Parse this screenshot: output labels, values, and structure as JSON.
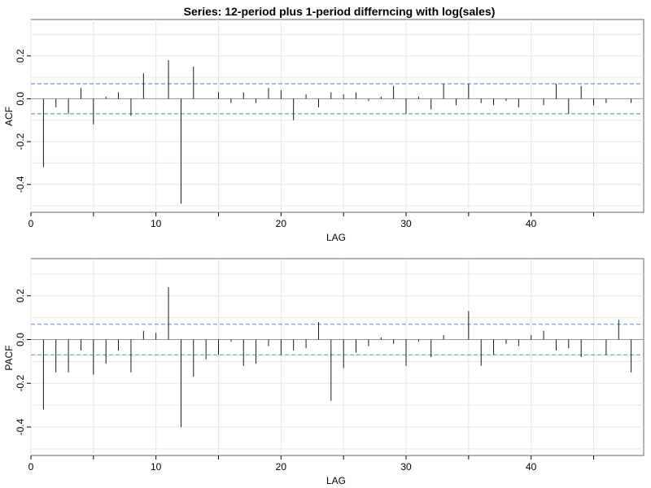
{
  "title": "Series: 12-period plus 1-period differncing with log(sales)",
  "chart_data": [
    {
      "type": "bar",
      "ylabel": "ACF",
      "xlabel": "LAG",
      "xlim": [
        0,
        49
      ],
      "ylim": [
        -0.53,
        0.37
      ],
      "x_ticks": [
        0,
        10,
        20,
        30,
        40
      ],
      "y_ticks": [
        -0.4,
        -0.2,
        0.0,
        0.2
      ],
      "y_tick_labels": [
        "-0.4",
        "-0.2",
        "0.0",
        "0.2"
      ],
      "confidence_bound": 0.07,
      "lags": [
        1,
        2,
        3,
        4,
        5,
        6,
        7,
        8,
        9,
        10,
        11,
        12,
        13,
        14,
        15,
        16,
        17,
        18,
        19,
        20,
        21,
        22,
        23,
        24,
        25,
        26,
        27,
        28,
        29,
        30,
        31,
        32,
        33,
        34,
        35,
        36,
        37,
        38,
        39,
        40,
        41,
        42,
        43,
        44,
        45,
        46,
        47,
        48
      ],
      "values": [
        -0.32,
        -0.04,
        -0.07,
        0.05,
        -0.12,
        0.01,
        0.03,
        -0.08,
        0.12,
        0.0,
        0.18,
        -0.49,
        0.15,
        0.0,
        0.03,
        -0.02,
        0.03,
        -0.02,
        0.05,
        0.04,
        -0.1,
        0.02,
        -0.04,
        0.03,
        0.02,
        0.03,
        -0.01,
        0.01,
        0.06,
        -0.07,
        0.01,
        -0.05,
        0.07,
        -0.03,
        0.07,
        -0.02,
        -0.03,
        -0.01,
        -0.04,
        0.0,
        -0.03,
        0.07,
        -0.07,
        0.06,
        -0.03,
        -0.02,
        0.0,
        -0.02
      ]
    },
    {
      "type": "bar",
      "ylabel": "PACF",
      "xlabel": "LAG",
      "xlim": [
        0,
        49
      ],
      "ylim": [
        -0.53,
        0.37
      ],
      "x_ticks": [
        0,
        10,
        20,
        30,
        40
      ],
      "y_ticks": [
        -0.4,
        -0.2,
        0.0,
        0.2
      ],
      "y_tick_labels": [
        "-0.4",
        "-0.2",
        "0.0",
        "0.2"
      ],
      "confidence_bound": 0.07,
      "lags": [
        1,
        2,
        3,
        4,
        5,
        6,
        7,
        8,
        9,
        10,
        11,
        12,
        13,
        14,
        15,
        16,
        17,
        18,
        19,
        20,
        21,
        22,
        23,
        24,
        25,
        26,
        27,
        28,
        29,
        30,
        31,
        32,
        33,
        34,
        35,
        36,
        37,
        38,
        39,
        40,
        41,
        42,
        43,
        44,
        45,
        46,
        47,
        48
      ],
      "values": [
        -0.32,
        -0.15,
        -0.15,
        -0.05,
        -0.16,
        -0.11,
        -0.05,
        -0.15,
        0.04,
        0.03,
        0.24,
        -0.4,
        -0.17,
        -0.09,
        -0.07,
        -0.01,
        -0.12,
        -0.11,
        -0.03,
        -0.07,
        -0.05,
        -0.04,
        0.08,
        -0.28,
        -0.13,
        -0.06,
        -0.03,
        0.01,
        -0.02,
        -0.12,
        -0.01,
        -0.08,
        0.02,
        0.0,
        0.13,
        -0.12,
        -0.07,
        -0.02,
        -0.03,
        0.02,
        0.04,
        -0.05,
        -0.04,
        -0.08,
        0.0,
        -0.07,
        0.09,
        -0.15
      ]
    }
  ]
}
